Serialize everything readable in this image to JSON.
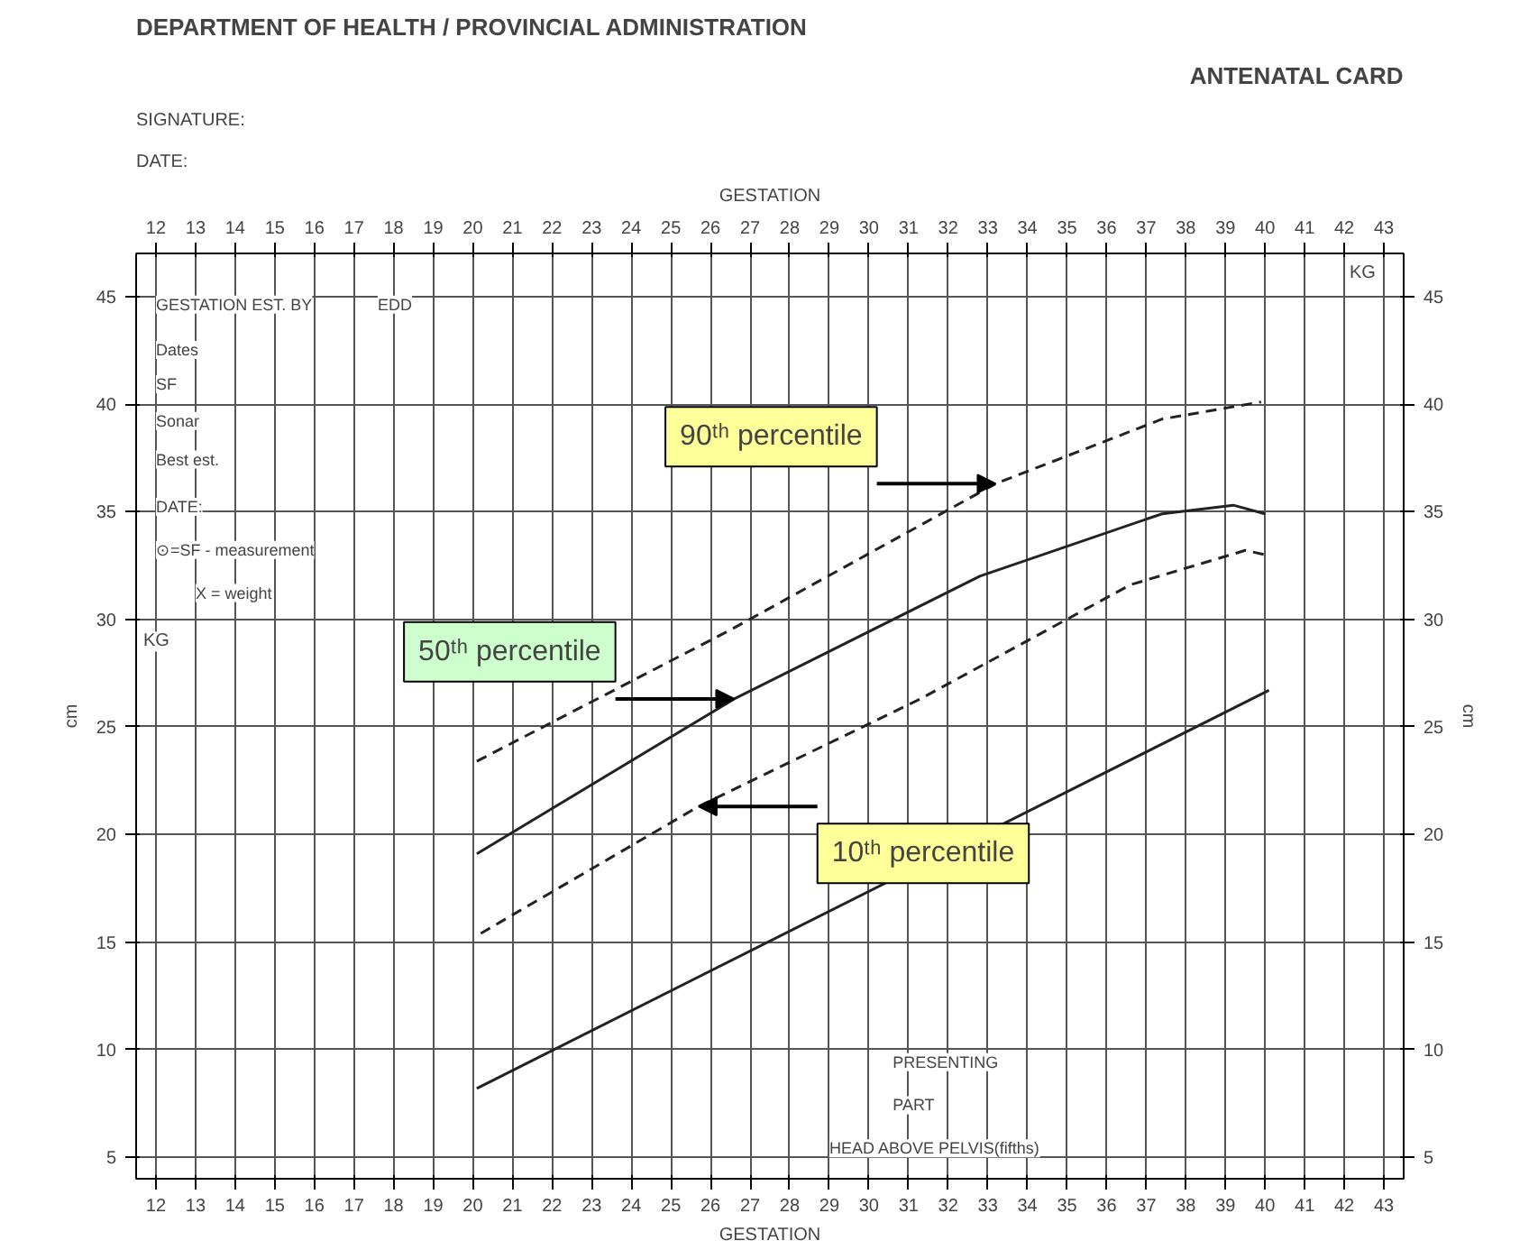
{
  "chart_data": {
    "type": "line",
    "title": "DEPARTMENT OF HEALTH / PROVINCIAL ADMINISTRATION",
    "subtitle": "ANTENATAL CARD",
    "xlabel": "GESTATION",
    "x2label": "GESTATION",
    "ylabel": "cm",
    "y2label": "cm",
    "xlim": [
      11.5,
      43.5
    ],
    "xticks": [
      12,
      13,
      14,
      15,
      16,
      17,
      18,
      19,
      20,
      21,
      22,
      23,
      24,
      25,
      26,
      27,
      28,
      29,
      30,
      31,
      32,
      33,
      34,
      35,
      36,
      37,
      38,
      39,
      40,
      41,
      42,
      43
    ],
    "x2lim": [
      11.5,
      43.5
    ],
    "x2ticks": [
      12,
      13,
      14,
      15,
      16,
      17,
      18,
      19,
      20,
      21,
      22,
      23,
      24,
      25,
      26,
      27,
      28,
      29,
      30,
      31,
      32,
      33,
      34,
      35,
      36,
      37,
      38,
      39,
      40,
      41,
      42,
      43
    ],
    "ylim": [
      4,
      47
    ],
    "yticks": [
      5,
      10,
      15,
      20,
      25,
      30,
      35,
      40,
      45
    ],
    "y2lim": [
      4,
      47
    ],
    "y2ticks": [
      5,
      10,
      15,
      20,
      25,
      30,
      35,
      40,
      45
    ],
    "grid": true,
    "series": [
      {
        "color": "#222222",
        "line_style": "dashed",
        "x": [
          20.1,
          26.5,
          33.2,
          37.4,
          39.9
        ],
        "values": [
          23.4,
          29.5,
          36.3,
          39.3,
          40.1
        ]
      },
      {
        "color": "#222222",
        "line_style": "solid",
        "x": [
          20.1,
          26.6,
          32.8,
          37.4,
          39.2,
          40.0
        ],
        "values": [
          19.1,
          26.3,
          32.0,
          34.9,
          35.3,
          34.9
        ]
      },
      {
        "color": "#222222",
        "line_style": "dashed",
        "x": [
          20.2,
          25.7,
          31.3,
          36.6,
          39.5,
          40.0
        ],
        "values": [
          15.4,
          21.3,
          26.3,
          31.6,
          33.2,
          33.0
        ]
      },
      {
        "color": "#222222",
        "line_style": "solid",
        "x": [
          20.1,
          40.1
        ],
        "values": [
          8.2,
          26.7
        ]
      }
    ],
    "annotations": [
      {
        "text": "90ᵗʰ percentile",
        "x": 33.2,
        "y": 36.3
      },
      {
        "text": "50ᵗʰ percentile",
        "x": 26.6,
        "y": 26.3
      },
      {
        "text": "10ᵗʰ percentile",
        "x": 25.7,
        "y": 21.3
      },
      "SIGNATURE:",
      "DATE:",
      "GESTATION EST. BY",
      "EDD",
      "Dates",
      "SF",
      "Sonar",
      "Best est.",
      "DATE:",
      "⊙=SF - measurement",
      "X = weight",
      "PRESENTING",
      "PART",
      "HEAD ABOVE PELVIS(fifths)",
      "KG",
      "KG"
    ]
  }
}
